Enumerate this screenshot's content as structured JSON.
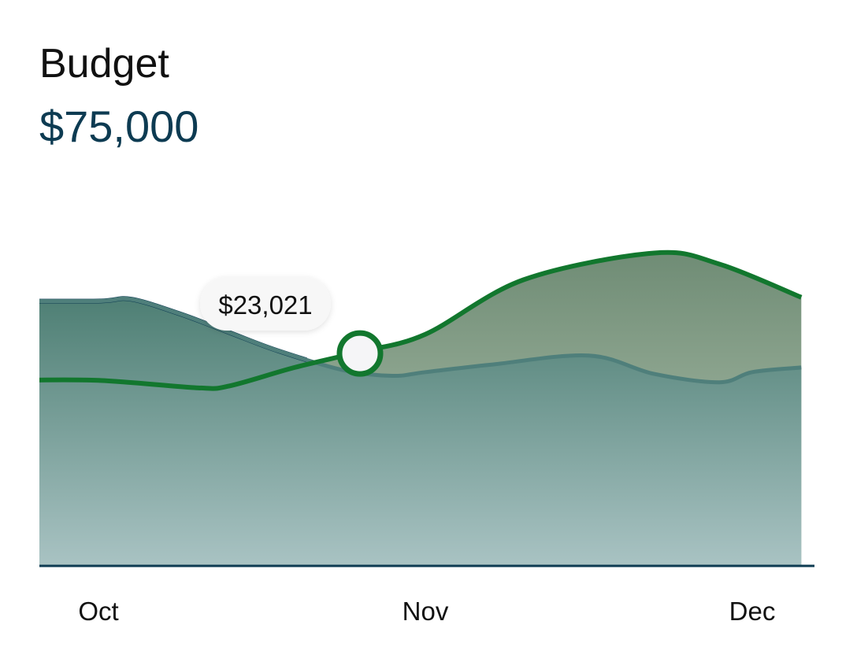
{
  "header": {
    "title": "Budget",
    "amount": "$75,000"
  },
  "tooltip": {
    "value": "$23,021"
  },
  "colors": {
    "blue_series": "#0d3b52",
    "teal_series": "#4f7f7b",
    "green_series": "#12772e",
    "axis": "#0d3b52"
  },
  "chart_data": {
    "type": "area",
    "x": [
      "Oct",
      "Nov",
      "Dec"
    ],
    "xlabel": "",
    "ylabel": "",
    "ylim": [
      0,
      40000
    ],
    "grid": false,
    "series": [
      {
        "role": "blue",
        "x": [
          0,
          0.1,
          0.25,
          0.4,
          0.55,
          0.75,
          0.9,
          1.0,
          1.2,
          1.5,
          1.7,
          1.9,
          2.0,
          2.15
        ],
        "values": [
          28700,
          28900,
          27300,
          25300,
          23300,
          21200,
          20600,
          21000,
          21800,
          22800,
          20800,
          19900,
          21000,
          21500
        ]
      },
      {
        "role": "teal",
        "x": [
          0,
          0.1,
          0.25,
          0.4,
          0.55,
          0.75,
          0.9,
          1.0,
          1.2,
          1.5,
          1.7,
          1.9,
          2.0,
          2.15
        ],
        "values": [
          28700,
          28900,
          27300,
          25300,
          23300,
          21200,
          20600,
          21000,
          21800,
          22800,
          20800,
          19900,
          21000,
          21500
        ]
      },
      {
        "role": "green",
        "x": [
          0,
          0.3,
          0.4,
          0.6,
          0.8,
          1.0,
          1.3,
          1.7,
          1.9,
          2.15
        ],
        "values": [
          20100,
          19300,
          19500,
          21500,
          23200,
          25100,
          31000,
          33900,
          32700,
          29100
        ]
      }
    ],
    "highlight": {
      "x": 0.8,
      "value": 23021,
      "label": "$23,021"
    }
  }
}
